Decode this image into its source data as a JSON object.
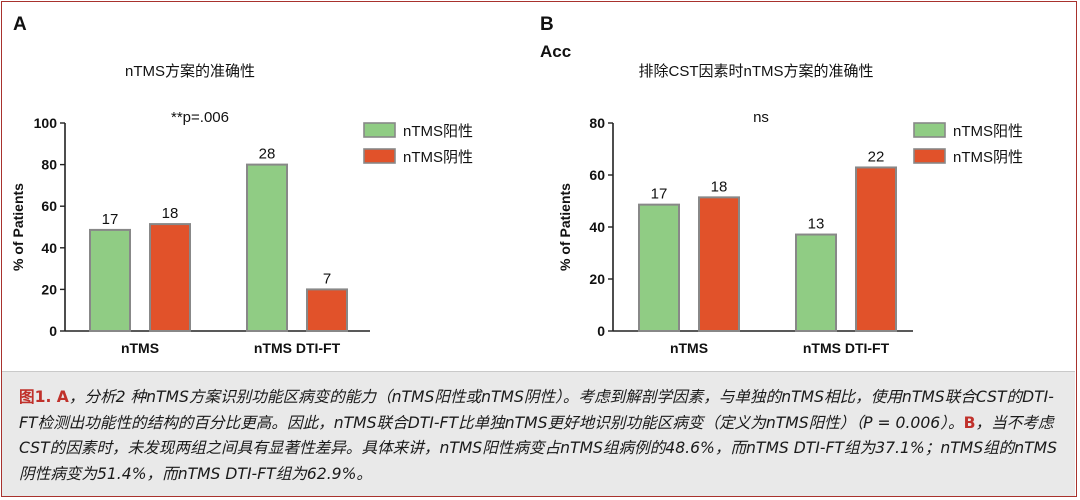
{
  "panels": {
    "a_letter": "A",
    "b_letter": "B",
    "b_overlap_text": "Acc"
  },
  "chart_data": [
    {
      "type": "bar",
      "title": "nTMS方案的准确性",
      "annotation": "**p=.006",
      "ylabel": "% of Patients",
      "ylim": [
        0,
        100
      ],
      "yticks": [
        "0",
        "20",
        "40",
        "60",
        "80",
        "100"
      ],
      "categories": [
        "nTMS",
        "nTMS DTI-FT"
      ],
      "legend_position": "top-right",
      "series": [
        {
          "name": "nTMS阳性",
          "color": "#90cc84",
          "values": [
            48.6,
            80
          ],
          "labels": [
            "17",
            "28"
          ]
        },
        {
          "name": "nTMS阴性",
          "color": "#e1522a",
          "values": [
            51.4,
            20
          ],
          "labels": [
            "18",
            "7"
          ]
        }
      ]
    },
    {
      "type": "bar",
      "title": "排除CST因素时nTMS方案的准确性",
      "annotation": "ns",
      "ylabel": "% of Patients",
      "ylim": [
        0,
        80
      ],
      "yticks": [
        "0",
        "20",
        "40",
        "60",
        "80"
      ],
      "categories": [
        "nTMS",
        "nTMS DTI-FT"
      ],
      "legend_position": "top-right",
      "series": [
        {
          "name": "nTMS阳性",
          "color": "#90cc84",
          "values": [
            48.6,
            37.1
          ],
          "labels": [
            "17",
            "13"
          ]
        },
        {
          "name": "nTMS阴性",
          "color": "#e1522a",
          "values": [
            51.4,
            62.9
          ],
          "labels": [
            "18",
            "22"
          ]
        }
      ]
    }
  ],
  "caption": {
    "fig": "图1. A",
    "part1": "，分析2 种nTMS方案识别功能区病变的能力（nTMS阳性或nTMS阴性）。考虑到解剖学因素，与单独的nTMS相比，使用nTMS联合CST的DTI-FT检测出功能性的结构的百分比更高。因此，nTMS联合DTI-FT比单独nTMS更好地识别功能区病变（定义为nTMS阳性）（P = 0.006）。",
    "b": "B",
    "part2": "，当不考虑CST的因素时，未发现两组之间具有显著性差异。具体来讲，nTMS阳性病变占nTMS组病例的48.6%，而nTMS DTI-FT组为37.1%；nTMS组的nTMS阴性病变为51.4%，而nTMS DTI-FT组为62.9%。"
  }
}
